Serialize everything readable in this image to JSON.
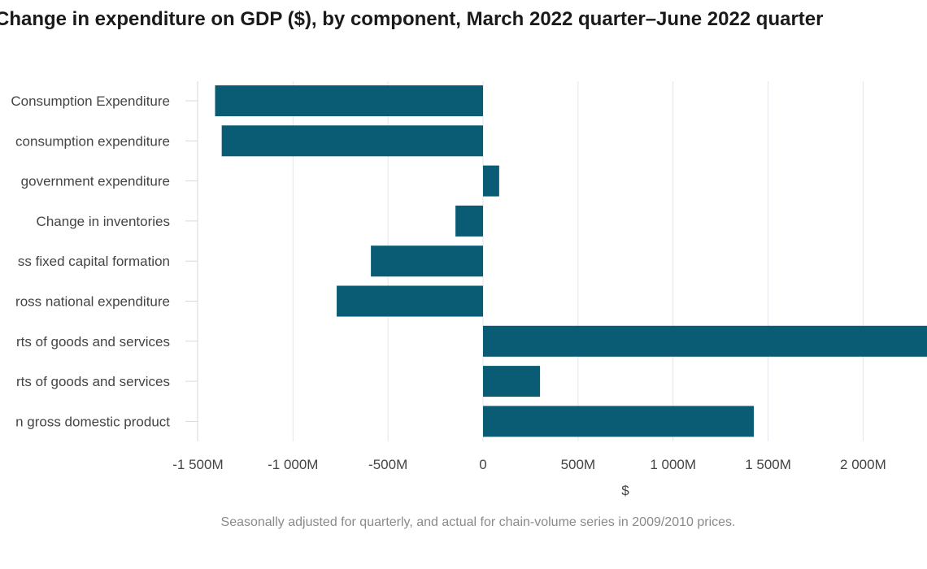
{
  "chart_data": {
    "type": "bar",
    "orientation": "horizontal",
    "title": "Change in expenditure on GDP ($), by component, March 2022 quarter–June 2022 quarter",
    "xlabel": "$",
    "ylabel": "",
    "categories": [
      "Consumption Expenditure",
      "consumption expenditure",
      "government expenditure",
      "Change in inventories",
      "ss fixed capital formation",
      "ross national expenditure",
      "rts of goods and services",
      "rts of goods and services",
      "n gross domestic product"
    ],
    "values": [
      -1410,
      -1375,
      85,
      -145,
      -590,
      -770,
      2350,
      300,
      1425
    ],
    "unit": "M",
    "xlim": [
      -1500,
      2350
    ],
    "xticks": [
      -1500,
      -1000,
      -500,
      0,
      500,
      1000,
      1500,
      2000
    ],
    "xtick_labels": [
      "-1 500M",
      "-1 000M",
      "-500M",
      "0",
      "500M",
      "1 000M",
      "1 500M",
      "2 000M"
    ],
    "grid": true,
    "legend": "none",
    "bar_color": "#0a5c75",
    "note": "Seasonally adjusted for quarterly, and actual for chain-volume series in 2009/2010 prices."
  }
}
